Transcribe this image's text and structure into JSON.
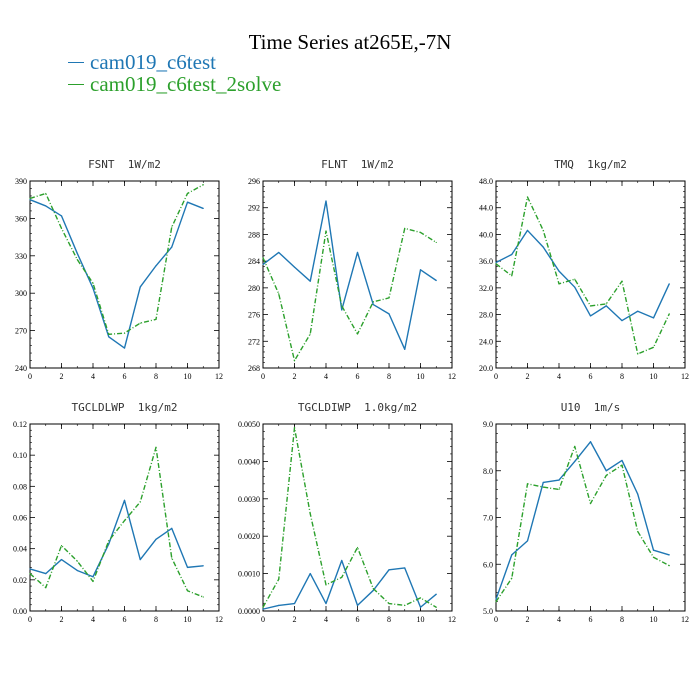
{
  "title": "Time Series at265E,-7N",
  "legend": [
    {
      "label": "cam019_c6test",
      "color": "#1f77b4"
    },
    {
      "label": "cam019_c6test_2solve",
      "color": "#2ca02c"
    }
  ],
  "chart_data": [
    {
      "type": "line",
      "title": "FSNT  1W/m2",
      "xlim": [
        0,
        12
      ],
      "ylim": [
        240,
        390
      ],
      "xticks": [
        0,
        2,
        4,
        6,
        8,
        10,
        12
      ],
      "xtick_labels": [
        "0",
        "2",
        "4",
        "6",
        "8",
        "10",
        "12"
      ],
      "yticks": [
        240,
        270,
        300,
        330,
        360,
        390
      ],
      "ytick_labels": [
        "240",
        "270",
        "300",
        "330",
        "360",
        "390"
      ],
      "x": [
        0,
        1,
        2,
        3,
        4,
        5,
        6,
        7,
        8,
        9,
        10,
        11
      ],
      "series": [
        {
          "name": "cam019_c6test",
          "color": "#1f77b4",
          "dash": "solid",
          "values": [
            375,
            370,
            362,
            332,
            304,
            265,
            256,
            305,
            322,
            337,
            373,
            368
          ]
        },
        {
          "name": "cam019_c6test_2solve",
          "color": "#2ca02c",
          "dash": "dashed",
          "values": [
            376,
            380,
            352,
            327,
            308,
            267,
            268,
            276,
            279,
            353,
            380,
            387
          ]
        }
      ]
    },
    {
      "type": "line",
      "title": "FLNT  1W/m2",
      "xlim": [
        0,
        12
      ],
      "ylim": [
        268,
        296
      ],
      "xticks": [
        0,
        2,
        4,
        6,
        8,
        10,
        12
      ],
      "xtick_labels": [
        "0",
        "2",
        "4",
        "6",
        "8",
        "10",
        "12"
      ],
      "yticks": [
        268,
        272,
        276,
        280,
        284,
        288,
        292,
        296
      ],
      "ytick_labels": [
        "268",
        "272",
        "276",
        "280",
        "284",
        "288",
        "292",
        "296"
      ],
      "x": [
        0,
        1,
        2,
        3,
        4,
        5,
        6,
        7,
        8,
        9,
        10,
        11
      ],
      "series": [
        {
          "name": "cam019_c6test",
          "color": "#1f77b4",
          "dash": "solid",
          "values": [
            283.5,
            285.3,
            283.1,
            281,
            293,
            276.7,
            285.3,
            277.5,
            276.1,
            270.8,
            282.7,
            281.1
          ]
        },
        {
          "name": "cam019_c6test_2solve",
          "color": "#2ca02c",
          "dash": "dashed",
          "values": [
            284.5,
            279.1,
            269.1,
            273.1,
            288.5,
            277.3,
            273.1,
            277.9,
            278.5,
            288.9,
            288.3,
            286.8
          ]
        }
      ]
    },
    {
      "type": "line",
      "title": "TMQ  1kg/m2",
      "xlim": [
        0,
        12
      ],
      "ylim": [
        20,
        48
      ],
      "xticks": [
        0,
        2,
        4,
        6,
        8,
        10,
        12
      ],
      "xtick_labels": [
        "0",
        "2",
        "4",
        "6",
        "8",
        "10",
        "12"
      ],
      "yticks": [
        20,
        24,
        28,
        32,
        36,
        40,
        44,
        48
      ],
      "ytick_labels": [
        "20.0",
        "24.0",
        "28.0",
        "32.0",
        "36.0",
        "40.0",
        "44.0",
        "48.0"
      ],
      "x": [
        0,
        1,
        2,
        3,
        4,
        5,
        6,
        7,
        8,
        9,
        10,
        11
      ],
      "series": [
        {
          "name": "cam019_c6test",
          "color": "#1f77b4",
          "dash": "solid",
          "values": [
            35.8,
            37,
            40.6,
            38.1,
            34.5,
            32.1,
            27.8,
            29.3,
            27.1,
            28.5,
            27.5,
            32.6
          ]
        },
        {
          "name": "cam019_c6test_2solve",
          "color": "#2ca02c",
          "dash": "dashed",
          "values": [
            35.6,
            33.8,
            45.6,
            40.6,
            32.6,
            33.3,
            29.3,
            29.6,
            33,
            22.1,
            23.1,
            28.1
          ]
        }
      ]
    },
    {
      "type": "line",
      "title": "TGCLDLWP  1kg/m2",
      "xlim": [
        0,
        12
      ],
      "ylim": [
        0,
        0.12
      ],
      "xticks": [
        0,
        2,
        4,
        6,
        8,
        10,
        12
      ],
      "xtick_labels": [
        "0",
        "2",
        "4",
        "6",
        "8",
        "10",
        "12"
      ],
      "yticks": [
        0,
        0.02,
        0.04,
        0.06,
        0.08,
        0.1,
        0.12
      ],
      "ytick_labels": [
        "0.00",
        "0.02",
        "0.04",
        "0.06",
        "0.08",
        "0.10",
        "0.12"
      ],
      "x": [
        0,
        1,
        2,
        3,
        4,
        5,
        6,
        7,
        8,
        9,
        10,
        11
      ],
      "series": [
        {
          "name": "cam019_c6test",
          "color": "#1f77b4",
          "dash": "solid",
          "values": [
            0.027,
            0.024,
            0.033,
            0.026,
            0.022,
            0.043,
            0.071,
            0.033,
            0.046,
            0.053,
            0.028,
            0.029
          ]
        },
        {
          "name": "cam019_c6test_2solve",
          "color": "#2ca02c",
          "dash": "dashed",
          "values": [
            0.024,
            0.015,
            0.042,
            0.032,
            0.019,
            0.045,
            0.058,
            0.07,
            0.105,
            0.034,
            0.013,
            0.009
          ]
        }
      ]
    },
    {
      "type": "line",
      "title": "TGCLDIWP  1.0kg/m2",
      "xlim": [
        0,
        12
      ],
      "ylim": [
        0,
        0.005
      ],
      "xticks": [
        0,
        2,
        4,
        6,
        8,
        10,
        12
      ],
      "xtick_labels": [
        "0",
        "2",
        "4",
        "6",
        "8",
        "10",
        "12"
      ],
      "yticks": [
        0,
        0.001,
        0.002,
        0.003,
        0.004,
        0.005
      ],
      "ytick_labels": [
        "0.0000",
        "0.0010",
        "0.0020",
        "0.0030",
        "0.0040",
        "0.0050"
      ],
      "x": [
        0,
        1,
        2,
        3,
        4,
        5,
        6,
        7,
        8,
        9,
        10,
        11
      ],
      "series": [
        {
          "name": "cam019_c6test",
          "color": "#1f77b4",
          "dash": "solid",
          "values": [
            5e-05,
            0.00015,
            0.0002,
            0.001,
            0.0002,
            0.00135,
            0.00015,
            0.00055,
            0.0011,
            0.00115,
            0.0001,
            0.00045
          ]
        },
        {
          "name": "cam019_c6test_2solve",
          "color": "#2ca02c",
          "dash": "dashed",
          "values": [
            0.0001,
            0.00085,
            0.0049,
            0.0026,
            0.0007,
            0.0009,
            0.0017,
            0.0006,
            0.0002,
            0.00015,
            0.00035,
            0.0001
          ]
        }
      ]
    },
    {
      "type": "line",
      "title": "U10  1m/s",
      "xlim": [
        0,
        12
      ],
      "ylim": [
        5,
        9
      ],
      "xticks": [
        0,
        2,
        4,
        6,
        8,
        10,
        12
      ],
      "xtick_labels": [
        "0",
        "2",
        "4",
        "6",
        "8",
        "10",
        "12"
      ],
      "yticks": [
        5,
        6,
        7,
        8,
        9
      ],
      "ytick_labels": [
        "5.0",
        "6.0",
        "7.0",
        "8.0",
        "9.0"
      ],
      "x": [
        0,
        1,
        2,
        3,
        4,
        5,
        6,
        7,
        8,
        9,
        10,
        11
      ],
      "series": [
        {
          "name": "cam019_c6test",
          "color": "#1f77b4",
          "dash": "solid",
          "values": [
            5.25,
            6.2,
            6.5,
            7.75,
            7.8,
            8.2,
            8.62,
            8,
            8.22,
            7.5,
            6.3,
            6.2
          ]
        },
        {
          "name": "cam019_c6test_2solve",
          "color": "#2ca02c",
          "dash": "dashed",
          "values": [
            5.2,
            5.7,
            7.72,
            7.65,
            7.6,
            8.52,
            7.3,
            7.9,
            8.12,
            6.7,
            6.15,
            5.97
          ]
        }
      ]
    }
  ]
}
